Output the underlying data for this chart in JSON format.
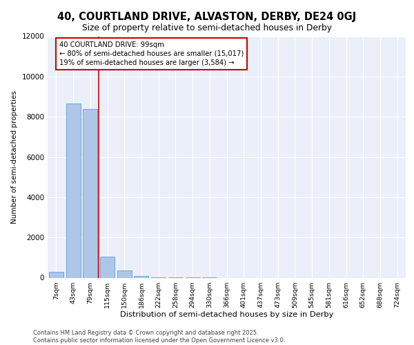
{
  "title_line1": "40, COURTLAND DRIVE, ALVASTON, DERBY, DE24 0GJ",
  "title_line2": "Size of property relative to semi-detached houses in Derby",
  "xlabel": "Distribution of semi-detached houses by size in Derby",
  "ylabel": "Number of semi-detached properties",
  "footer_line1": "Contains HM Land Registry data © Crown copyright and database right 2025.",
  "footer_line2": "Contains public sector information licensed under the Open Government Licence v3.0.",
  "categories": [
    "7sqm",
    "43sqm",
    "79sqm",
    "115sqm",
    "150sqm",
    "186sqm",
    "222sqm",
    "258sqm",
    "294sqm",
    "330sqm",
    "366sqm",
    "401sqm",
    "437sqm",
    "473sqm",
    "509sqm",
    "545sqm",
    "581sqm",
    "616sqm",
    "652sqm",
    "688sqm",
    "724sqm"
  ],
  "values": [
    280,
    8650,
    8400,
    1050,
    350,
    90,
    30,
    5,
    1,
    1,
    0,
    0,
    0,
    0,
    0,
    0,
    0,
    0,
    0,
    0,
    0
  ],
  "bar_color": "#aec6e8",
  "bar_edge_color": "#5a9fd4",
  "annotation_text_line1": "40 COURTLAND DRIVE: 99sqm",
  "annotation_text_line2": "← 80% of semi-detached houses are smaller (15,017)",
  "annotation_text_line3": "19% of semi-detached houses are larger (3,584) →",
  "ylim_max": 12000,
  "yticks": [
    0,
    2000,
    4000,
    6000,
    8000,
    10000,
    12000
  ],
  "bg_color": "#eaeff9",
  "grid_color": "#ffffff",
  "annotation_box_edge": "#cc0000",
  "line_color": "#cc0000",
  "property_line_x": 2.5
}
